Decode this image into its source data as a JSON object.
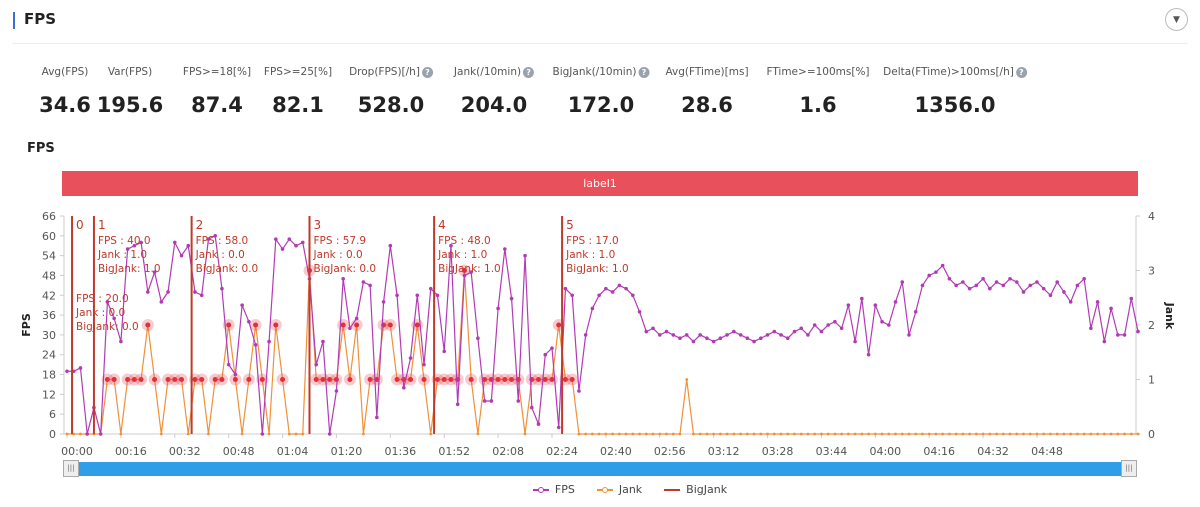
{
  "header": {
    "title": "FPS",
    "collapse_icon": "chevron-down-circle-icon"
  },
  "metrics": [
    {
      "label": "Avg(FPS)",
      "value": "34.6",
      "help": false
    },
    {
      "label": "Var(FPS)",
      "value": "195.6",
      "help": false
    },
    {
      "label": "FPS>=18[%]",
      "value": "87.4",
      "help": false
    },
    {
      "label": "FPS>=25[%]",
      "value": "82.1",
      "help": false
    },
    {
      "label": "Drop(FPS)[/h]",
      "value": "528.0",
      "help": true
    },
    {
      "label": "Jank(/10min)",
      "value": "204.0",
      "help": true
    },
    {
      "label": "BigJank(/10min)",
      "value": "172.0",
      "help": true
    },
    {
      "label": "Avg(FTime)[ms]",
      "value": "28.6",
      "help": false
    },
    {
      "label": "FTime>=100ms[%]",
      "value": "1.6",
      "help": false
    },
    {
      "label": "Delta(FTime)>100ms[/h]",
      "value": "1356.0",
      "help": true
    }
  ],
  "chart_title": "FPS",
  "label_band": "label1",
  "legend": {
    "fps": "FPS",
    "jank": "Jank",
    "bigjank": "BigJank"
  },
  "colors": {
    "fps": "#b23bb5",
    "jank": "#f0913a",
    "bigjank": "#c0392b",
    "band": "#e8505b",
    "slider": "#2e9fe6"
  },
  "chart_data": {
    "type": "line",
    "xlabel": "",
    "ylabel": "FPS",
    "y2label": "Jank",
    "ylim": [
      0,
      66
    ],
    "y2lim": [
      0,
      4
    ],
    "yticks": [
      0,
      6,
      12,
      18,
      24,
      30,
      36,
      42,
      48,
      54,
      60,
      66
    ],
    "y2ticks": [
      0,
      1,
      2,
      3,
      4
    ],
    "xticks": [
      "00:00",
      "00:16",
      "00:32",
      "00:48",
      "01:04",
      "01:20",
      "01:36",
      "01:52",
      "02:08",
      "02:24",
      "02:40",
      "02:56",
      "03:12",
      "03:28",
      "03:44",
      "04:00",
      "04:16",
      "04:32",
      "04:48"
    ],
    "x_step_seconds": 2,
    "series": [
      {
        "name": "FPS",
        "axis": "left",
        "values": [
          19,
          19,
          20,
          0,
          8,
          0,
          40,
          35,
          28,
          56,
          57,
          58,
          43,
          49,
          40,
          43,
          58,
          54,
          57,
          43,
          42,
          59,
          60,
          44,
          21,
          18,
          39,
          34,
          27,
          0,
          28,
          59,
          56,
          59,
          57,
          58,
          47,
          21,
          28,
          0,
          13,
          47,
          32,
          35,
          46,
          45,
          5,
          40,
          57,
          42,
          14,
          23,
          42,
          21,
          44,
          42,
          25,
          57,
          9,
          48,
          49,
          29,
          10,
          10,
          38,
          56,
          41,
          10,
          54,
          8,
          3,
          24,
          26,
          2,
          44,
          42,
          13,
          30,
          38,
          42,
          44,
          43,
          45,
          44,
          42,
          37,
          31,
          32,
          30,
          31,
          30,
          29,
          30,
          28,
          30,
          29,
          28,
          29,
          30,
          31,
          30,
          29,
          28,
          29,
          30,
          31,
          30,
          29,
          31,
          32,
          30,
          33,
          31,
          33,
          34,
          32,
          39,
          28,
          41,
          24,
          39,
          34,
          33,
          40,
          46,
          30,
          37,
          45,
          48,
          49,
          51,
          47,
          45,
          46,
          44,
          45,
          47,
          44,
          46,
          45,
          47,
          46,
          43,
          45,
          46,
          44,
          42,
          46,
          43,
          40,
          45,
          47,
          32,
          40,
          28,
          38,
          30,
          30,
          41,
          31
        ]
      },
      {
        "name": "Jank",
        "axis": "right",
        "values": [
          0,
          0,
          0,
          0,
          0,
          0,
          1,
          1,
          0,
          1,
          1,
          1,
          2,
          1,
          0,
          1,
          1,
          1,
          0,
          1,
          1,
          0,
          1,
          1,
          2,
          1,
          0,
          1,
          2,
          1,
          0,
          2,
          1,
          0,
          0,
          0,
          3,
          1,
          1,
          1,
          1,
          2,
          1,
          2,
          0,
          1,
          1,
          2,
          2,
          1,
          1,
          1,
          2,
          1,
          0,
          1,
          1,
          1,
          1,
          3,
          1,
          0,
          1,
          1,
          1,
          1,
          1,
          1,
          0,
          1,
          1,
          1,
          1,
          2,
          1,
          1,
          0,
          0,
          0,
          0,
          0,
          0,
          0,
          0,
          0,
          0,
          0,
          0,
          0,
          0,
          0,
          0,
          1,
          0,
          0,
          0,
          0,
          0,
          0,
          0,
          0,
          0,
          0,
          0,
          0,
          0,
          0,
          0,
          0,
          0,
          0,
          0,
          0,
          0,
          0,
          0,
          0,
          0,
          0,
          0,
          0,
          0,
          0,
          0,
          0,
          0,
          0,
          0,
          0,
          0,
          0,
          0,
          0,
          0,
          0,
          0,
          0,
          0,
          0,
          0,
          0,
          0,
          0,
          0,
          0,
          0,
          0,
          0,
          0,
          0,
          0,
          0,
          0,
          0,
          0,
          0,
          0,
          0,
          0,
          0
        ]
      },
      {
        "name": "BigJank",
        "axis": "right",
        "markers": [
          {
            "id": "0",
            "time_s": 1.5,
            "fps": "20.0",
            "jank": "0.0",
            "bigjank": "0.0"
          },
          {
            "id": "1",
            "time_s": 8,
            "fps": "40.0",
            "jank": "1.0",
            "bigjank": "1.0"
          },
          {
            "id": "2",
            "time_s": 37,
            "fps": "58.0",
            "jank": "0.0",
            "bigjank": "0.0"
          },
          {
            "id": "3",
            "time_s": 72,
            "fps": "57.9",
            "jank": "0.0",
            "bigjank": "0.0"
          },
          {
            "id": "4",
            "time_s": 109,
            "fps": "48.0",
            "jank": "1.0",
            "bigjank": "1.0"
          },
          {
            "id": "5",
            "time_s": 147,
            "fps": "17.0",
            "jank": "1.0",
            "bigjank": "1.0"
          }
        ]
      }
    ],
    "marker_labels": {
      "fps": "FPS",
      "jank": "Jank",
      "bigjank": "BigJank"
    },
    "grid": false,
    "legend_position": "bottom"
  }
}
